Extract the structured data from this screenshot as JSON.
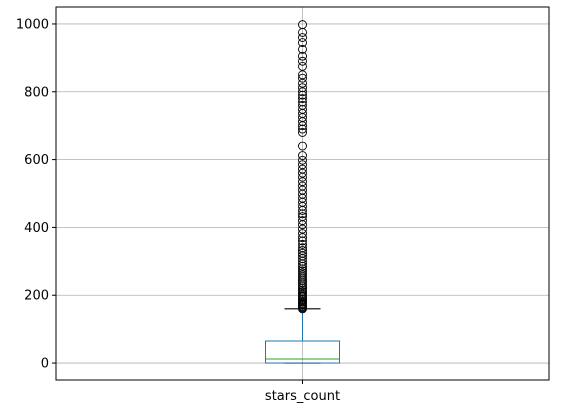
{
  "chart_data": {
    "type": "box",
    "categories": [
      "stars_count"
    ],
    "y_ticks": [
      0,
      200,
      400,
      600,
      800,
      1000
    ],
    "ylim": [
      -50,
      1050
    ],
    "grid": true,
    "box": {
      "q1": 0,
      "median": 12,
      "q3": 65,
      "whisker_low": 0,
      "whisker_high": 160
    },
    "outliers": [
      160,
      163,
      166,
      170,
      173,
      176,
      180,
      184,
      188,
      192,
      196,
      200,
      205,
      210,
      215,
      220,
      225,
      230,
      236,
      242,
      248,
      254,
      260,
      266,
      272,
      278,
      285,
      292,
      300,
      308,
      316,
      324,
      332,
      340,
      350,
      360,
      370,
      382,
      395,
      408,
      420,
      432,
      440,
      450,
      462,
      474,
      486,
      498,
      510,
      522,
      535,
      548,
      560,
      572,
      585,
      598,
      612,
      640,
      680,
      690,
      700,
      712,
      724,
      736,
      748,
      760,
      770,
      780,
      790,
      800,
      812,
      825,
      840,
      850,
      875,
      890,
      905,
      925,
      945,
      960,
      975,
      998
    ],
    "colors": {
      "box": "#1f77b4",
      "median": "#2ca02c",
      "whisker": "#000000",
      "grid": "#b0b0b0",
      "outlier": "#000000"
    }
  }
}
